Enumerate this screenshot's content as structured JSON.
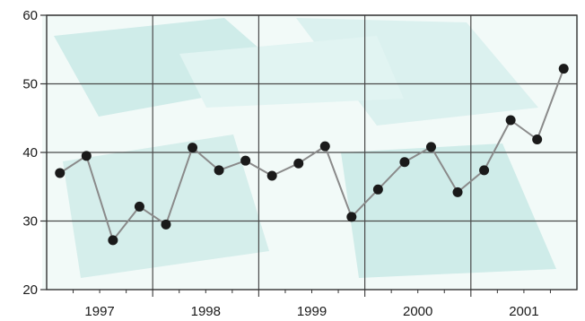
{
  "chart_data": {
    "type": "line",
    "title": "",
    "xlabel": "",
    "ylabel": "",
    "ylim": [
      20,
      60
    ],
    "yticks": [
      "20",
      "30",
      "40",
      "50",
      "60"
    ],
    "year_labels": [
      "1997",
      "1998",
      "1999",
      "2000",
      "2001"
    ],
    "x": [
      "1997 Q1",
      "1997 Q2",
      "1997 Q3",
      "1997 Q4",
      "1998 Q1",
      "1998 Q2",
      "1998 Q3",
      "1998 Q4",
      "1999 Q1",
      "1999 Q2",
      "1999 Q3",
      "1999 Q4",
      "2000 Q1",
      "2000 Q2",
      "2000 Q3",
      "2000 Q4",
      "2001 Q1",
      "2001 Q2",
      "2001 Q3",
      "2001 Q4"
    ],
    "values": [
      37,
      39.5,
      27.2,
      32.1,
      29.5,
      40.7,
      37.4,
      38.8,
      36.6,
      38.4,
      40.9,
      30.6,
      34.6,
      38.6,
      40.8,
      34.2,
      37.4,
      44.7,
      41.9,
      52.2
    ],
    "grid": true,
    "legend": "none",
    "colors": {
      "background": "#ffffff",
      "watermark": "#a9ddd8",
      "line": "#8a8a8a",
      "marker": "#1a1a1a",
      "grid": "#4a4a4a",
      "axis": "#333333"
    }
  }
}
